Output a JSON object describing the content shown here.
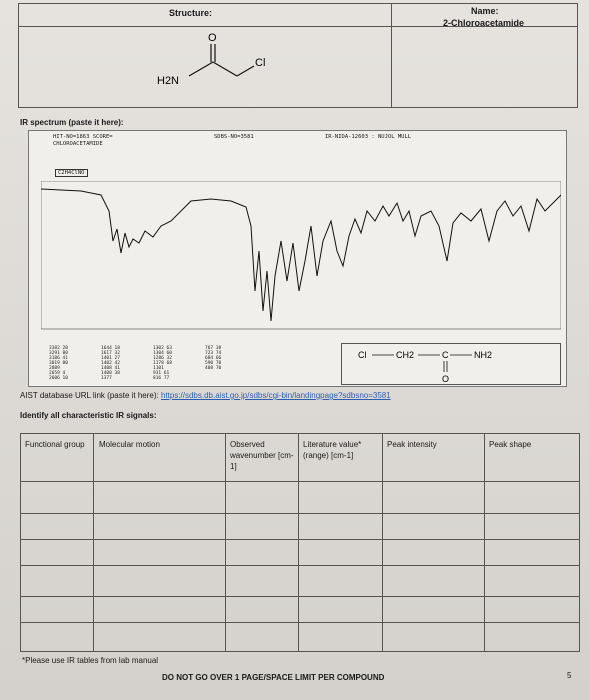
{
  "header": {
    "structure_label": "Structure:",
    "name_label": "Name:",
    "compound_name": "2-Chloroacetamide",
    "molecule": {
      "nh2_label": "H2N",
      "cl_label": "Cl",
      "o_label": "O"
    }
  },
  "ir_section": {
    "title": "IR spectrum (paste it here):",
    "spectrum_header": {
      "hit_line": "HIT-NO=1863 SCORE=",
      "compound_line": "CHLOROACETAMIDE",
      "sdbs_line": "SDBS-NO=3581",
      "nida_line": "IR-NIDA-12603 : NUJOL MULL",
      "formula": "C2H4ClNO"
    },
    "structure_text": {
      "cl": "Cl",
      "ch2": "CH2",
      "c": "C",
      "nh2": "NH2",
      "o": "O"
    },
    "peak_table": [
      [
        "3382 20",
        "3291 80",
        "3186 41",
        "3019 80",
        "2889 ",
        "2659 4",
        "2606 10"
      ],
      [
        "1644 18",
        "1617 32",
        "1401 27",
        "1402 42",
        "1408 41",
        "1400 38",
        "1377 "
      ],
      [
        "1302 63",
        "1304 60",
        "1286 32",
        "1178 68",
        "1101 ",
        "931 61",
        "816 77"
      ],
      [
        "767 38",
        "723 74",
        "684 66",
        "590 70",
        "408 70",
        "",
        ""
      ]
    ]
  },
  "url_line": {
    "label": "AIST database URL link (paste it here): ",
    "url": "https://sdbs.db.aist.go.jp/sdbs/cgi-bin/landingpage?sdbsno=3581"
  },
  "identify_label": "Identify all characteristic IR signals:",
  "table": {
    "headers": [
      "Functional group",
      "Molecular motion",
      "Observed wavenumber [cm-1]",
      "Literature value* (range) [cm-1]",
      "Peak intensity",
      "Peak shape"
    ]
  },
  "footnote": "*Please use IR tables from lab manual",
  "limit_note": "DO NOT GO OVER 1 PAGE/SPACE LIMIT PER COMPOUND",
  "page_number": "5",
  "colors": {
    "link": "#2a5db0",
    "paper": "#e2dfdb",
    "ink": "#1a1a1a"
  }
}
